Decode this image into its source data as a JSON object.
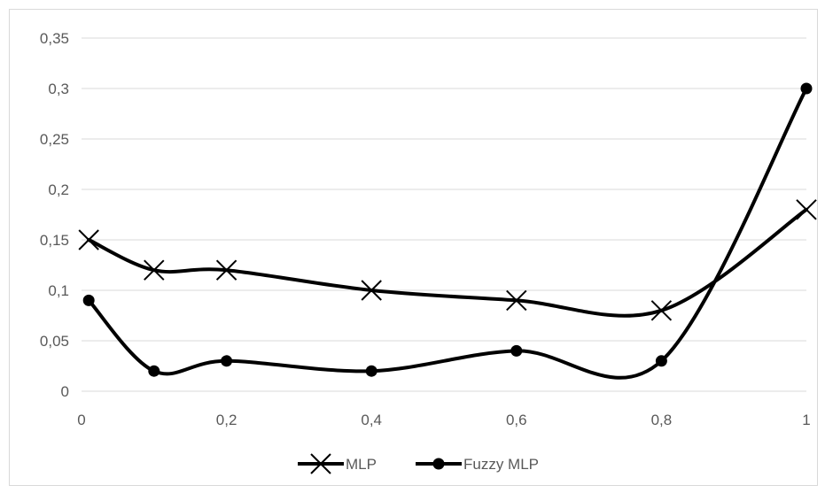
{
  "chart_data": {
    "type": "line",
    "title": "",
    "xlabel": "",
    "ylabel": "",
    "x": [
      0.01,
      0.1,
      0.2,
      0.4,
      0.6,
      0.8,
      1
    ],
    "xlim": [
      0,
      1
    ],
    "ylim": [
      0,
      0.35
    ],
    "x_ticks": [
      "0",
      "0,2",
      "0,4",
      "0,6",
      "0,8",
      "1"
    ],
    "y_ticks": [
      "0",
      "0,05",
      "0,1",
      "0,15",
      "0,2",
      "0,25",
      "0,3",
      "0,35"
    ],
    "grid": "horizontal",
    "smooth": true,
    "legend_position": "bottom",
    "series": [
      {
        "name": "MLP",
        "marker": "x",
        "color": "#000000",
        "values": [
          0.15,
          0.12,
          0.12,
          0.1,
          0.09,
          0.08,
          0.18
        ]
      },
      {
        "name": "Fuzzy MLP",
        "marker": "circle",
        "color": "#000000",
        "values": [
          0.09,
          0.02,
          0.03,
          0.02,
          0.04,
          0.03,
          0.3
        ]
      }
    ]
  }
}
